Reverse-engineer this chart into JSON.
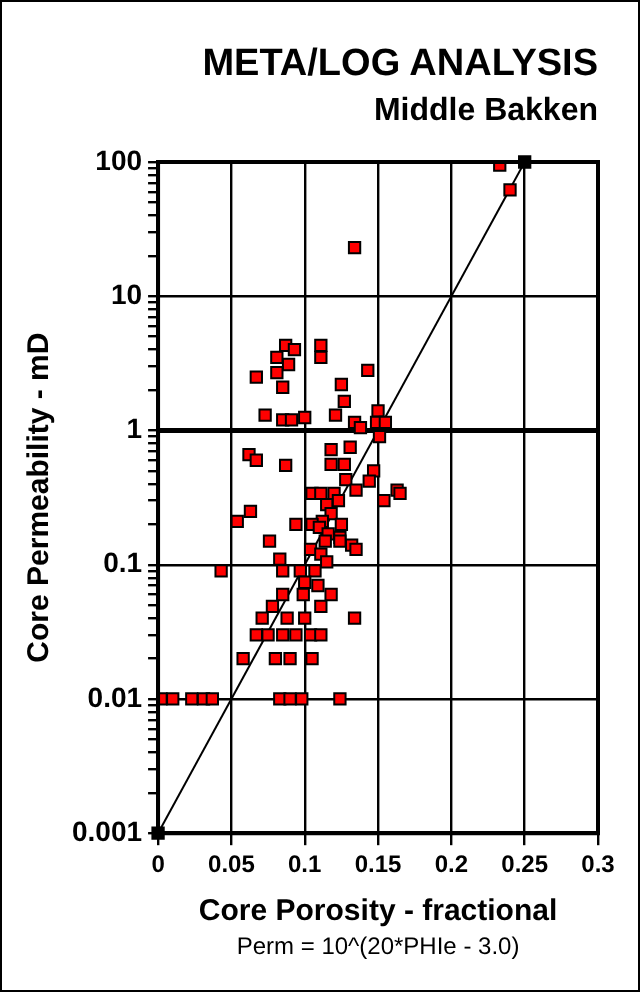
{
  "chart_data": {
    "type": "scatter",
    "title": "META/LOG ANALYSIS",
    "subtitle": "Middle Bakken",
    "xlabel": "Core Porosity - fractional",
    "ylabel": "Core Permeability - mD",
    "annotations": [
      "Perm = 10^(20*PHIe - 3.0)"
    ],
    "log": "y",
    "grid": true,
    "marker": "square",
    "xlim": [
      0,
      0.3
    ],
    "xticks": [
      0,
      0.05,
      0.1,
      0.15,
      0.2,
      0.25,
      0.3
    ],
    "ylim": [
      0.001,
      100
    ],
    "yticks": [
      0.001,
      {
        "value": 0.002,
        "label": null
      },
      {
        "value": 0.003,
        "label": null
      },
      {
        "value": 0.004,
        "label": null
      },
      {
        "value": 0.005,
        "label": null
      },
      {
        "value": 0.006,
        "label": null
      },
      {
        "value": 0.007,
        "label": null
      },
      {
        "value": 0.008,
        "label": null
      },
      {
        "value": 0.009,
        "label": null
      },
      0.01,
      {
        "value": 0.02,
        "label": null
      },
      {
        "value": 0.03,
        "label": null
      },
      {
        "value": 0.04,
        "label": null
      },
      {
        "value": 0.05,
        "label": null
      },
      {
        "value": 0.06,
        "label": null
      },
      {
        "value": 0.07,
        "label": null
      },
      {
        "value": 0.08,
        "label": null
      },
      {
        "value": 0.09,
        "label": null
      },
      0.1,
      {
        "value": 0.2,
        "label": null
      },
      {
        "value": 0.3,
        "label": null
      },
      {
        "value": 0.4,
        "label": null
      },
      {
        "value": 0.5,
        "label": null
      },
      {
        "value": 0.6,
        "label": null
      },
      {
        "value": 0.7,
        "label": null
      },
      {
        "value": 0.8,
        "label": null
      },
      {
        "value": 0.9,
        "label": null
      },
      1,
      {
        "value": 2,
        "label": null
      },
      {
        "value": 3,
        "label": null
      },
      {
        "value": 4,
        "label": null
      },
      {
        "value": 5,
        "label": null
      },
      {
        "value": 6,
        "label": null
      },
      {
        "value": 7,
        "label": null
      },
      {
        "value": 8,
        "label": null
      },
      {
        "value": 9,
        "label": null
      },
      10,
      {
        "value": 20,
        "label": null
      },
      {
        "value": 30,
        "label": null
      },
      {
        "value": 40,
        "label": null
      },
      {
        "value": 50,
        "label": null
      },
      {
        "value": 60,
        "label": null
      },
      {
        "value": 70,
        "label": null
      },
      {
        "value": 80,
        "label": null
      },
      {
        "value": 90,
        "label": null
      },
      100
    ],
    "ref_lines": [
      {
        "axis": "y",
        "value": 1,
        "color": "#000000"
      }
    ],
    "legend": false,
    "series": [
      {
        "color": "#ff0000",
        "x": [
          0.233,
          0.24,
          0.134,
          0.087,
          0.093,
          0.111,
          0.111,
          0.081,
          0.089,
          0.081,
          0.067,
          0.143,
          0.085,
          0.125,
          0.127,
          0.073,
          0.085,
          0.091,
          0.1,
          0.121,
          0.15,
          0.134,
          0.138,
          0.149,
          0.155,
          0.151,
          0.062,
          0.067,
          0.087,
          0.118,
          0.131,
          0.118,
          0.127,
          0.128,
          0.147,
          0.144,
          0.163,
          0.165,
          0.154,
          0.105,
          0.111,
          0.12,
          0.135,
          0.123,
          0.115,
          0.118,
          0.112,
          0.105,
          0.125,
          0.054,
          0.063,
          0.094,
          0.11,
          0.116,
          0.124,
          0.114,
          0.124,
          0.132,
          0.135,
          0.076,
          0.104,
          0.111,
          0.083,
          0.115,
          0.043,
          0.085,
          0.097,
          0.107,
          0.1,
          0.109,
          0.085,
          0.099,
          0.118,
          0.111,
          0.078,
          0.071,
          0.088,
          0.1,
          0.134,
          0.067,
          0.075,
          0.085,
          0.094,
          0.104,
          0.111,
          0.058,
          0.08,
          0.09,
          0.105,
          0.002,
          0.01,
          0.023,
          0.031,
          0.037,
          0.083,
          0.09,
          0.098,
          0.124
        ],
        "values": [
          95,
          62,
          23,
          4.3,
          4,
          4.3,
          3.5,
          3.5,
          3.1,
          2.7,
          2.5,
          2.8,
          2.1,
          2.2,
          1.65,
          1.3,
          1.2,
          1.2,
          1.25,
          1.3,
          1.4,
          1.15,
          1.05,
          1.15,
          1.15,
          0.9,
          0.66,
          0.6,
          0.55,
          0.72,
          0.75,
          0.56,
          0.56,
          0.43,
          0.5,
          0.42,
          0.36,
          0.34,
          0.3,
          0.34,
          0.34,
          0.34,
          0.36,
          0.3,
          0.28,
          0.24,
          0.21,
          0.2,
          0.2,
          0.21,
          0.25,
          0.2,
          0.19,
          0.17,
          0.16,
          0.15,
          0.15,
          0.14,
          0.13,
          0.15,
          0.13,
          0.12,
          0.11,
          0.105,
          0.09,
          0.09,
          0.09,
          0.09,
          0.074,
          0.07,
          0.06,
          0.06,
          0.06,
          0.049,
          0.049,
          0.04,
          0.04,
          0.04,
          0.04,
          0.03,
          0.03,
          0.03,
          0.03,
          0.03,
          0.03,
          0.02,
          0.02,
          0.02,
          0.02,
          0.01,
          0.01,
          0.01,
          0.01,
          0.01,
          0.01,
          0.01,
          0.01,
          0.01
        ]
      },
      {
        "type": "line",
        "color": "#000000",
        "marker": "square",
        "line_style": "solid",
        "x": [
          0,
          0.25
        ],
        "values": [
          0.001,
          100
        ]
      }
    ]
  }
}
